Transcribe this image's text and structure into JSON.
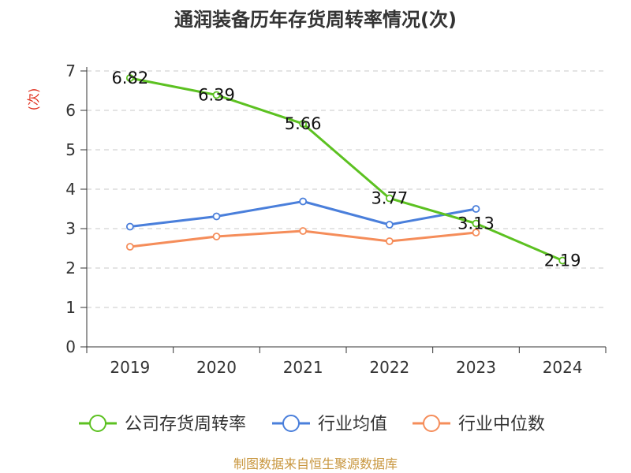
{
  "chart_data": {
    "type": "line",
    "title": "通润装备历年存货周转率情况(次)",
    "xlabel": "",
    "ylabel": "(次)",
    "categories": [
      "2019",
      "2020",
      "2021",
      "2022",
      "2023",
      "2024"
    ],
    "ylim": [
      0,
      7
    ],
    "yticks": [
      "0",
      "1",
      "2",
      "3",
      "4",
      "5",
      "6",
      "7"
    ],
    "grid": true,
    "series": [
      {
        "name": "公司存货周转率",
        "color": "#5cc121",
        "values": [
          6.82,
          6.39,
          5.66,
          3.77,
          3.13,
          2.19
        ],
        "labels": [
          "6.82",
          "6.39",
          "5.66",
          "3.77",
          "3.13",
          "2.19"
        ]
      },
      {
        "name": "行业均值",
        "color": "#4a7fdb",
        "values": [
          3.05,
          3.31,
          3.69,
          3.1,
          3.5,
          null
        ]
      },
      {
        "name": "行业中位数",
        "color": "#f58d5a",
        "values": [
          2.54,
          2.8,
          2.94,
          2.68,
          2.9,
          null
        ]
      }
    ],
    "legend_position": "bottom",
    "source": "制图数据来自恒生聚源数据库",
    "ylabel_color": "#e0301e",
    "source_color": "#c8963e"
  }
}
